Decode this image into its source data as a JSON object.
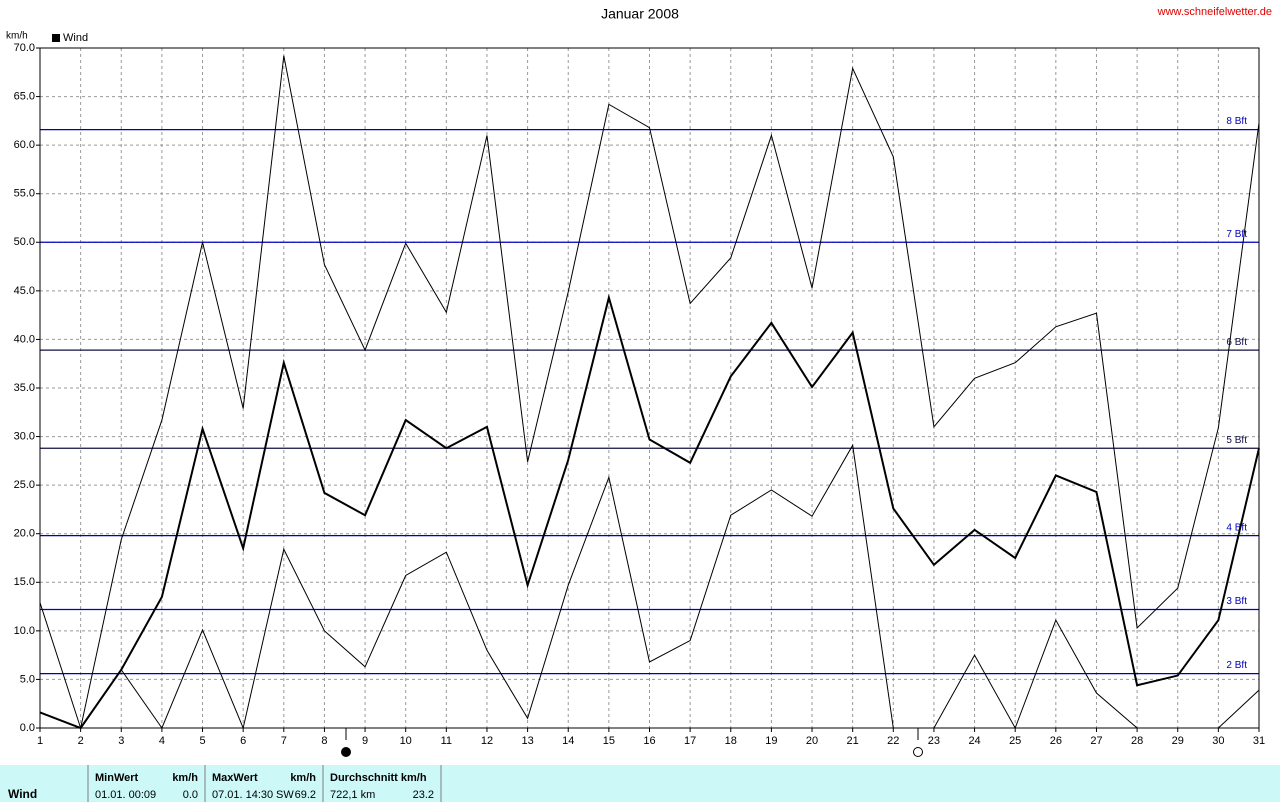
{
  "chart_data": {
    "type": "line",
    "title": "Januar 2008",
    "source": "www.schneifelwetter.de",
    "y_label": "km/h",
    "x": [
      1,
      2,
      3,
      4,
      5,
      6,
      7,
      8,
      9,
      10,
      11,
      12,
      13,
      14,
      15,
      16,
      17,
      18,
      19,
      20,
      21,
      22,
      23,
      24,
      25,
      26,
      27,
      28,
      29,
      30,
      31
    ],
    "xlim": [
      1,
      31
    ],
    "xticks": [
      1,
      2,
      3,
      4,
      5,
      6,
      7,
      8,
      9,
      10,
      11,
      12,
      13,
      14,
      15,
      16,
      17,
      18,
      19,
      20,
      21,
      22,
      23,
      24,
      25,
      26,
      27,
      28,
      29,
      30,
      31
    ],
    "ylim": [
      0,
      70
    ],
    "yticks": [
      {
        "value": 0,
        "label": "0.0"
      },
      {
        "value": 5,
        "label": "5.0"
      },
      {
        "value": 10,
        "label": "10.0"
      },
      {
        "value": 15,
        "label": "15.0"
      },
      {
        "value": 20,
        "label": "20.0"
      },
      {
        "value": 25,
        "label": "25.0"
      },
      {
        "value": 30,
        "label": "30.0"
      },
      {
        "value": 35,
        "label": "35.0"
      },
      {
        "value": 40,
        "label": "40.0"
      },
      {
        "value": 45,
        "label": "45.0"
      },
      {
        "value": 50,
        "label": "50.0"
      },
      {
        "value": 55,
        "label": "55.0"
      },
      {
        "value": 60,
        "label": "60.0"
      },
      {
        "value": 65,
        "label": "65.0"
      },
      {
        "value": 70,
        "label": "70.0"
      }
    ],
    "grid": true,
    "series": [
      {
        "name": "Wind",
        "color": "#000000",
        "width": 2,
        "values": [
          1.6,
          0,
          6.0,
          13.5,
          30.8,
          18.5,
          37.6,
          24.2,
          21.9,
          31.7,
          28.8,
          31.0,
          14.7,
          27.6,
          44.3,
          29.7,
          27.3,
          36.2,
          41.7,
          35.1,
          40.7,
          22.6,
          16.8,
          20.4,
          17.5,
          26.0,
          24.3,
          4.4,
          5.4,
          11.1,
          28.8
        ]
      },
      {
        "color": "#000000",
        "width": 1,
        "values": [
          12.9,
          0,
          19.4,
          31.7,
          50.0,
          32.9,
          69.2,
          47.7,
          38.9,
          49.9,
          42.8,
          61.0,
          27.4,
          44.9,
          64.2,
          61.8,
          43.7,
          48.4,
          61.0,
          45.3,
          67.9,
          58.8,
          31.0,
          36.0,
          37.6,
          41.3,
          42.7,
          10.3,
          14.4,
          30.9,
          62.3
        ]
      },
      {
        "color": "#000000",
        "width": 1,
        "values": [
          1.6,
          0,
          6.0,
          0,
          10.1,
          0,
          18.4,
          10.0,
          6.3,
          15.7,
          18.1,
          8.0,
          1.0,
          14.7,
          25.8,
          6.8,
          9.0,
          21.9,
          24.5,
          21.8,
          29.1,
          0,
          0,
          7.5,
          0,
          11.1,
          3.6,
          0,
          0,
          0,
          3.9
        ]
      }
    ],
    "reference_lines": [
      {
        "value": 5.6,
        "label": "2 Bft",
        "color": "#0000c0"
      },
      {
        "value": 12.2,
        "label": "3 Bft",
        "color": "#0000c0"
      },
      {
        "value": 19.8,
        "label": "4 Bft",
        "color": "#0000c0"
      },
      {
        "value": 28.8,
        "label": "5 Bft",
        "color": "#101040"
      },
      {
        "value": 38.9,
        "label": "6 Bft",
        "color": "#101040"
      },
      {
        "value": 50.0,
        "label": "7 Bft",
        "color": "#0000c0"
      },
      {
        "value": 61.6,
        "label": "8 Bft",
        "color": "#0000c0"
      }
    ]
  },
  "summary": {
    "row_label": "Wind",
    "columns": [
      {
        "header": [
          "MinWert",
          "km/h"
        ],
        "cells": [
          "01.01.  00:09",
          "0.0"
        ]
      },
      {
        "header": [
          "MaxWert",
          "km/h"
        ],
        "cells": [
          "07.01.  14:30",
          "SW",
          "69.2"
        ]
      },
      {
        "header": [
          "Durchschnitt km/h"
        ],
        "cells": [
          "722,1 km",
          "23.2"
        ]
      }
    ]
  }
}
